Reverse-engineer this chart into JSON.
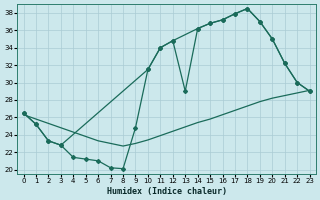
{
  "xlabel": "Humidex (Indice chaleur)",
  "bg_color": "#cce8ec",
  "grid_color": "#aaccd4",
  "line_color": "#1a6b5a",
  "xlim": [
    -0.5,
    23.5
  ],
  "ylim": [
    19.5,
    39.0
  ],
  "xticks": [
    0,
    1,
    2,
    3,
    4,
    5,
    6,
    7,
    8,
    9,
    10,
    11,
    12,
    13,
    14,
    15,
    16,
    17,
    18,
    19,
    20,
    21,
    22,
    23
  ],
  "yticks": [
    20,
    22,
    24,
    26,
    28,
    30,
    32,
    34,
    36,
    38
  ],
  "line1_x": [
    0,
    1,
    2,
    3,
    4,
    5,
    6,
    7,
    8,
    9,
    10,
    11,
    12,
    13,
    14,
    15,
    16,
    17,
    18,
    19,
    20,
    21,
    22,
    23
  ],
  "line1_y": [
    26.5,
    25.2,
    23.3,
    22.8,
    21.4,
    21.2,
    21.0,
    20.2,
    20.1,
    24.8,
    31.5,
    34.0,
    34.8,
    29.0,
    36.2,
    36.8,
    37.2,
    37.9,
    38.5,
    37.0,
    35.0,
    32.2,
    30.0,
    29.0
  ],
  "line2_x": [
    0,
    1,
    2,
    3,
    4,
    5,
    6,
    7,
    8,
    9,
    10,
    11,
    12,
    13,
    14,
    15,
    16,
    17,
    18,
    19,
    20,
    21,
    22,
    23
  ],
  "line2_y": [
    26.3,
    25.8,
    25.3,
    24.8,
    24.3,
    23.8,
    23.3,
    23.0,
    22.7,
    23.0,
    23.4,
    23.9,
    24.4,
    24.9,
    25.4,
    25.8,
    26.3,
    26.8,
    27.3,
    27.8,
    28.2,
    28.5,
    28.8,
    29.1
  ],
  "line3_x": [
    0,
    1,
    2,
    3,
    10,
    11,
    12,
    14,
    15,
    16,
    17,
    18,
    19,
    20,
    21,
    22,
    23
  ],
  "line3_y": [
    26.5,
    25.2,
    23.3,
    22.8,
    31.5,
    34.0,
    34.8,
    36.2,
    36.8,
    37.2,
    37.9,
    38.5,
    37.0,
    35.0,
    32.2,
    30.0,
    29.0
  ]
}
